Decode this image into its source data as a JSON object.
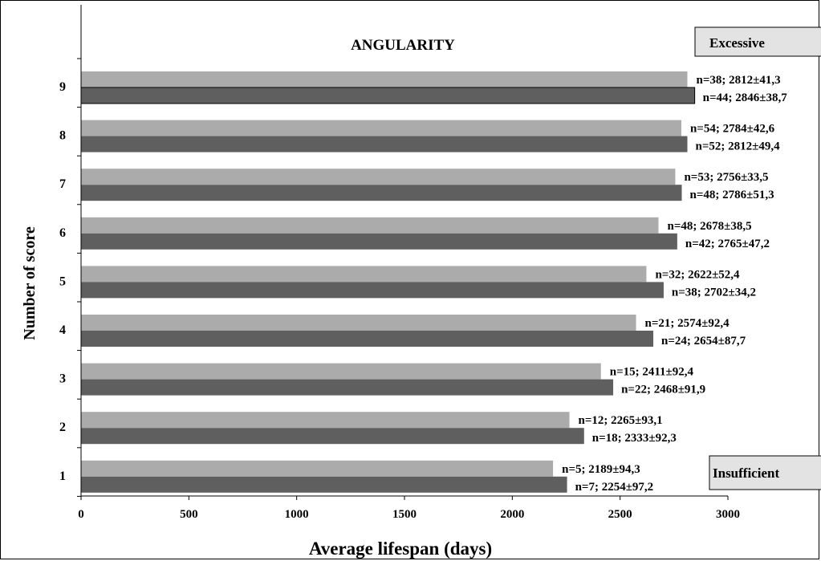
{
  "chart_data": {
    "type": "bar",
    "orientation": "horizontal",
    "title": "ANGULARITY",
    "xlabel": "Average lifespan (days)",
    "ylabel": "Number of score",
    "xlim": [
      0,
      3000
    ],
    "xticks": [
      0,
      500,
      1000,
      1500,
      2000,
      2500,
      3000
    ],
    "categories": [
      "1",
      "2",
      "3",
      "4",
      "5",
      "6",
      "7",
      "8",
      "9"
    ],
    "series": [
      {
        "color": "#ababab",
        "values": [
          2189,
          2265,
          2411,
          2574,
          2622,
          2678,
          2756,
          2784,
          2812
        ],
        "labels": [
          "n=5; 2189±94,3",
          "n=12; 2265±93,1",
          "n=15; 2411±92,4",
          "n=21; 2574±92,4",
          "n=32; 2622±52,4",
          "n=48; 2678±38,5",
          "n=53; 2756±33,5",
          "n=54; 2784±42,6",
          "n=38; 2812±41,3"
        ]
      },
      {
        "color": "#5f5f5f",
        "values": [
          2254,
          2333,
          2468,
          2654,
          2702,
          2765,
          2786,
          2812,
          2846
        ],
        "labels": [
          "n=7; 2254±97,2",
          "n=18; 2333±92,3",
          "n=22; 2468±91,9",
          "n=24; 2654±87,7",
          "n=38; 2702±34,2",
          "n=42; 2765±47,2",
          "n=48; 2786±51,3",
          "n=52; 2812±49,4",
          "n=44; 2846±38,7"
        ]
      }
    ],
    "annotations": {
      "top": "Excessive",
      "bottom": "Insufficient"
    },
    "grid": false,
    "legend": "none"
  }
}
